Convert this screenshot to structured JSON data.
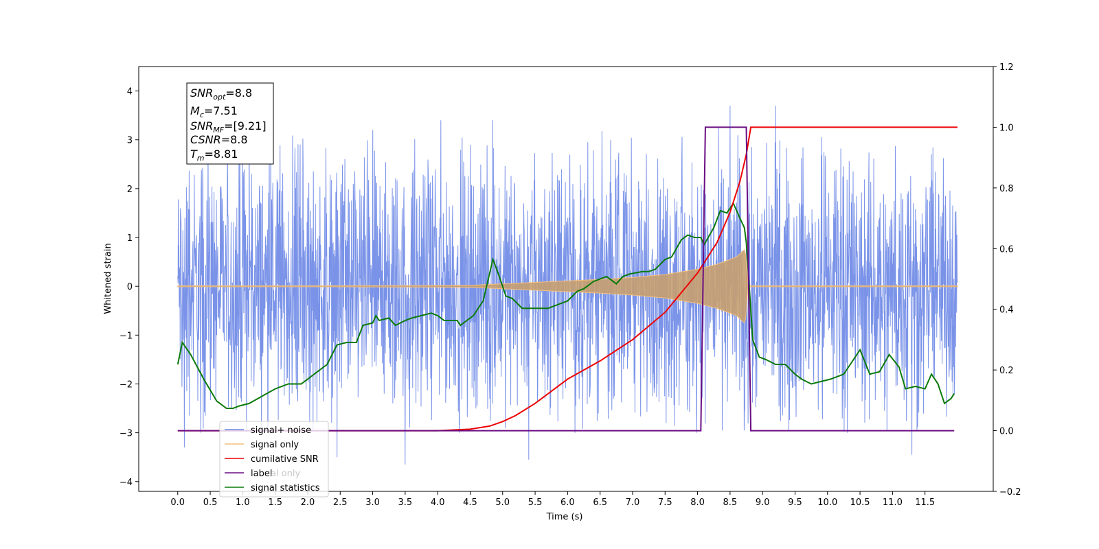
{
  "chart_data": {
    "type": "line",
    "xlabel": "Time (s)",
    "ylabel_left": "Whitened strain",
    "ylabel_right": "",
    "xlim": [
      -0.6,
      12.55
    ],
    "ylim_left": [
      -4.2,
      4.5
    ],
    "ylim_right": [
      -0.2,
      1.2
    ],
    "x_ticks": [
      "0.0",
      "0.5",
      "1.0",
      "1.5",
      "2.0",
      "2.5",
      "3.0",
      "3.5",
      "4.0",
      "4.5",
      "5.0",
      "5.5",
      "6.0",
      "6.5",
      "7.0",
      "7.5",
      "8.0",
      "8.5",
      "9.0",
      "9.5",
      "10.0",
      "10.5",
      "11.0",
      "11.5"
    ],
    "y_ticks_left": [
      "4",
      "3",
      "2",
      "1",
      "0",
      "−1",
      "−2",
      "−3",
      "−4"
    ],
    "y_ticks_right": [
      "1.2",
      "1.0",
      "0.8",
      "0.6",
      "0.4",
      "0.2",
      "0.0",
      "−0.2"
    ],
    "grid": false,
    "legend_placement": "lower-left",
    "series": [
      {
        "name": "signal+ noise",
        "color": "#6b87e6",
        "axis": "left",
        "x_range": [
          0.0,
          12.0
        ],
        "envelope_min": -2.9,
        "envelope_max": 2.9,
        "peaks": [
          [
            1.1,
            3.4
          ],
          [
            3.0,
            3.2
          ],
          [
            4.05,
            3.4
          ],
          [
            4.85,
            3.4
          ],
          [
            8.5,
            3.7
          ],
          [
            9.2,
            3.7
          ],
          [
            11.3,
            4.1
          ],
          [
            3.5,
            -3.65
          ],
          [
            5.4,
            -3.55
          ],
          [
            0.1,
            -3.3
          ],
          [
            11.3,
            -3.45
          ],
          [
            2.45,
            -3.5
          ]
        ]
      },
      {
        "name": "signal only",
        "color": "#f5c07a",
        "axis": "left",
        "x": [
          0.0,
          4.5,
          5.0,
          5.5,
          6.0,
          6.5,
          7.0,
          7.5,
          8.0,
          8.3,
          8.6,
          8.72,
          8.75,
          8.77,
          12.0
        ],
        "amplitude": [
          0.0,
          0.02,
          0.05,
          0.08,
          0.11,
          0.14,
          0.18,
          0.24,
          0.35,
          0.45,
          0.6,
          0.75,
          0.6,
          0.0,
          0.0
        ]
      },
      {
        "name": "cumilative SNR",
        "color": "#ee0000",
        "axis": "right",
        "x": [
          0.0,
          3.0,
          4.0,
          4.5,
          4.8,
          5.0,
          5.2,
          5.5,
          6.0,
          6.5,
          7.0,
          7.5,
          8.0,
          8.3,
          8.5,
          8.65,
          8.75,
          8.82,
          8.88,
          12.0
        ],
        "y": [
          0.0,
          0.0,
          0.0,
          0.005,
          0.015,
          0.03,
          0.05,
          0.09,
          0.17,
          0.23,
          0.3,
          0.39,
          0.52,
          0.62,
          0.72,
          0.82,
          0.91,
          1.0,
          1.0,
          1.0
        ]
      },
      {
        "name": "label",
        "color": "#6a0d83",
        "axis": "right",
        "x": [
          0.0,
          8.05,
          8.12,
          8.75,
          8.82,
          11.95
        ],
        "y": [
          0.0,
          0.0,
          1.0,
          1.0,
          0.0,
          0.0
        ]
      },
      {
        "name": "signal statistics",
        "color": "#0a7a0a",
        "axis": "left",
        "x": [
          0.0,
          0.07,
          0.2,
          0.4,
          0.6,
          0.75,
          0.85,
          0.95,
          1.1,
          1.3,
          1.5,
          1.7,
          1.9,
          2.0,
          2.1,
          2.2,
          2.3,
          2.45,
          2.6,
          2.75,
          2.85,
          3.0,
          3.05,
          3.1,
          3.25,
          3.35,
          3.5,
          3.6,
          3.75,
          3.9,
          4.0,
          4.1,
          4.3,
          4.35,
          4.45,
          4.55,
          4.7,
          4.85,
          4.95,
          5.05,
          5.15,
          5.3,
          5.5,
          5.7,
          5.9,
          6.0,
          6.15,
          6.25,
          6.4,
          6.6,
          6.75,
          6.85,
          6.95,
          7.15,
          7.25,
          7.35,
          7.5,
          7.6,
          7.75,
          7.85,
          7.95,
          8.05,
          8.1,
          8.25,
          8.35,
          8.45,
          8.55,
          8.65,
          8.72,
          8.75,
          8.85,
          8.95,
          9.05,
          9.2,
          9.35,
          9.5,
          9.6,
          9.75,
          9.9,
          10.05,
          10.25,
          10.35,
          10.5,
          10.65,
          10.8,
          10.95,
          11.1,
          11.2,
          11.35,
          11.5,
          11.6,
          11.7,
          11.8,
          11.9,
          11.95
        ],
        "y": [
          -1.6,
          -1.15,
          -1.4,
          -1.9,
          -2.35,
          -2.5,
          -2.5,
          -2.45,
          -2.4,
          -2.25,
          -2.1,
          -2.0,
          -2.0,
          -1.9,
          -1.8,
          -1.7,
          -1.6,
          -1.2,
          -1.15,
          -1.15,
          -0.8,
          -0.75,
          -0.6,
          -0.7,
          -0.65,
          -0.8,
          -0.7,
          -0.65,
          -0.6,
          -0.55,
          -0.6,
          -0.7,
          -0.7,
          -0.8,
          -0.7,
          -0.6,
          -0.3,
          0.55,
          0.2,
          -0.2,
          -0.25,
          -0.45,
          -0.45,
          -0.45,
          -0.35,
          -0.3,
          -0.1,
          -0.05,
          0.1,
          0.2,
          0.05,
          0.2,
          0.25,
          0.3,
          0.3,
          0.35,
          0.55,
          0.6,
          0.95,
          1.05,
          1.0,
          1.0,
          0.85,
          1.2,
          1.55,
          1.5,
          1.7,
          1.4,
          1.2,
          0.9,
          -1.1,
          -1.45,
          -1.5,
          -1.6,
          -1.6,
          -1.8,
          -1.9,
          -2.0,
          -1.95,
          -1.9,
          -1.8,
          -1.6,
          -1.3,
          -1.8,
          -1.75,
          -1.4,
          -1.65,
          -2.1,
          -2.05,
          -2.1,
          -1.8,
          -2.0,
          -2.4,
          -2.3,
          -2.2
        ]
      }
    ],
    "info_box": {
      "line1_var": "SNR",
      "line1_sub": "opt",
      "line1_val": "=8.8",
      "line2_var": "M",
      "line2_sub": "c",
      "line2_val": "=7.51",
      "line3_var": "SNR",
      "line3_sub": "MF",
      "line3_val": "=[9.21]",
      "line4_var": "CSNR",
      "line4_val": "=8.8",
      "line5_var": "T",
      "line5_sub": "m",
      "line5_val": "=8.81"
    },
    "legend_partial_note_hidden": "al only"
  }
}
